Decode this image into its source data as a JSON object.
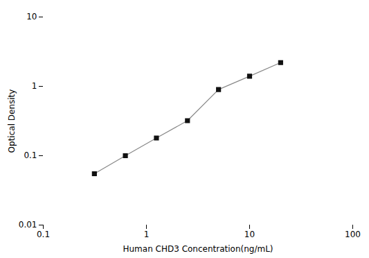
{
  "chart_data": {
    "type": "line",
    "x": [
      0.313,
      0.625,
      1.25,
      2.5,
      5,
      10,
      20
    ],
    "values": [
      0.055,
      0.1,
      0.18,
      0.32,
      0.9,
      1.4,
      2.2
    ],
    "xlabel": "Human CHD3 Concentration(ng/mL)",
    "ylabel": "Optical Density",
    "log": true,
    "xlim": [
      0.1,
      100
    ],
    "ylim": [
      0.01,
      10
    ],
    "xticks": [
      0.1,
      1,
      10,
      100
    ],
    "yticks": [
      0.01,
      0.1,
      1,
      10
    ],
    "grid": false,
    "color": "#888888",
    "marker": "square",
    "line_style": "solid"
  }
}
